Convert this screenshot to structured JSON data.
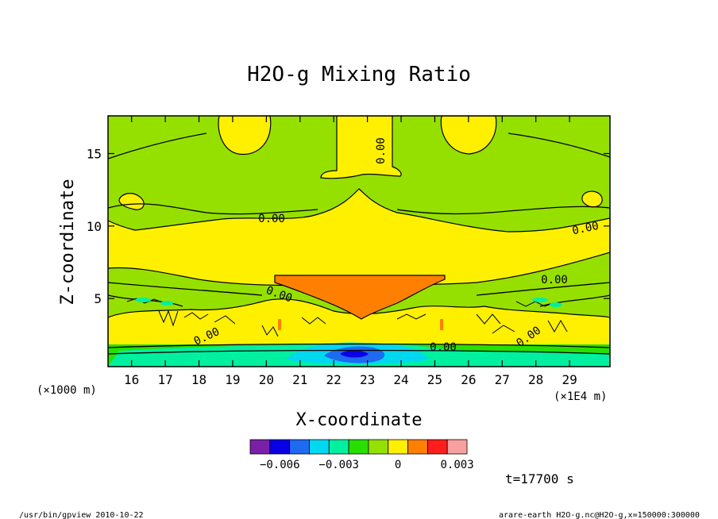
{
  "chart_data": {
    "type": "heatmap",
    "title": "H2O-g Mixing Ratio",
    "xlabel": "X-coordinate",
    "ylabel": "Z-coordinate",
    "x_unit": "(×1E4 m)",
    "y_unit": "(×1000 m)",
    "xlim": [
      15.3,
      30.2
    ],
    "ylim": [
      0.3,
      17.6
    ],
    "x_ticks": [
      16,
      17,
      18,
      19,
      20,
      21,
      22,
      23,
      24,
      25,
      26,
      27,
      28,
      29
    ],
    "y_ticks": [
      5,
      10,
      15
    ],
    "contour_labels": [
      "0.00",
      "0.00",
      "0.00",
      "0.00",
      "0.00",
      "0.00",
      "0.00",
      "0.00"
    ],
    "colorbar": {
      "colors": [
        "#7a1fa8",
        "#0a00e6",
        "#1e6af0",
        "#00d8f0",
        "#00f0a0",
        "#28e000",
        "#96e000",
        "#fff000",
        "#ff8000",
        "#ff1e1e",
        "#f8a0a0"
      ],
      "tick_labels": [
        "−0.006",
        "−0.003",
        "0",
        "0.003"
      ],
      "tick_values": [
        -0.006,
        -0.003,
        0,
        0.003
      ],
      "range": [
        -0.0075,
        0.0035
      ]
    },
    "time_label": "t=17700 s",
    "footer_left": "/usr/bin/gpview  2010-10-22",
    "footer_right": "arare-earth_H2O-g.nc@H2O-g,x=150000:300000"
  }
}
